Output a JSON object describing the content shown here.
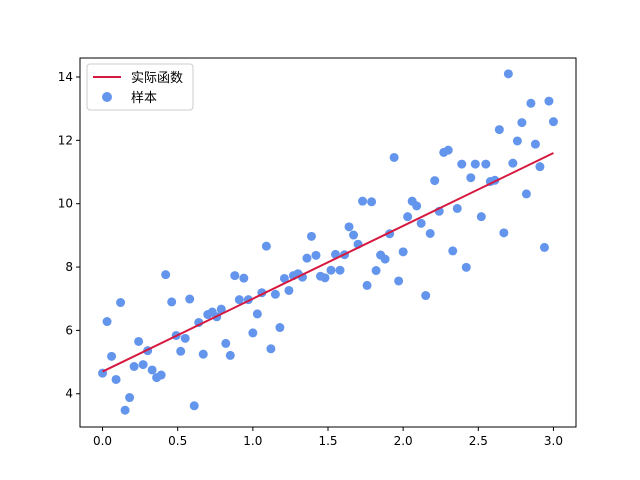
{
  "chart_data": {
    "type": "scatter",
    "title": "",
    "xlabel": "",
    "ylabel": "",
    "xlim": [
      -0.15,
      3.15
    ],
    "ylim": [
      2.95,
      14.6
    ],
    "x_ticks": [
      0.0,
      0.5,
      1.0,
      1.5,
      2.0,
      2.5,
      3.0
    ],
    "x_tick_labels": [
      "0.0",
      "0.5",
      "1.0",
      "1.5",
      "2.0",
      "2.5",
      "3.0"
    ],
    "y_ticks": [
      4,
      6,
      8,
      10,
      12,
      14
    ],
    "y_tick_labels": [
      "4",
      "6",
      "8",
      "10",
      "12",
      "14"
    ],
    "grid": false,
    "legend_position": "top-left",
    "series": [
      {
        "name": "实际函数",
        "kind": "line",
        "color": "#d6193f",
        "x": [
          0.0,
          3.0
        ],
        "y": [
          4.7,
          11.6
        ]
      },
      {
        "name": "样本",
        "kind": "scatter",
        "color": "#6495ed",
        "points": [
          [
            0.0,
            4.65
          ],
          [
            0.03,
            6.28
          ],
          [
            0.06,
            5.18
          ],
          [
            0.09,
            4.45
          ],
          [
            0.12,
            6.88
          ],
          [
            0.15,
            3.48
          ],
          [
            0.18,
            3.88
          ],
          [
            0.21,
            4.86
          ],
          [
            0.24,
            5.65
          ],
          [
            0.27,
            4.92
          ],
          [
            0.3,
            5.36
          ],
          [
            0.33,
            4.75
          ],
          [
            0.36,
            4.51
          ],
          [
            0.39,
            4.59
          ],
          [
            0.42,
            7.76
          ],
          [
            0.46,
            6.9
          ],
          [
            0.49,
            5.84
          ],
          [
            0.52,
            5.34
          ],
          [
            0.55,
            5.75
          ],
          [
            0.58,
            6.99
          ],
          [
            0.61,
            3.62
          ],
          [
            0.64,
            6.25
          ],
          [
            0.67,
            5.25
          ],
          [
            0.7,
            6.5
          ],
          [
            0.73,
            6.58
          ],
          [
            0.76,
            6.43
          ],
          [
            0.79,
            6.67
          ],
          [
            0.82,
            5.59
          ],
          [
            0.85,
            5.21
          ],
          [
            0.88,
            7.73
          ],
          [
            0.91,
            6.97
          ],
          [
            0.94,
            7.65
          ],
          [
            0.97,
            6.97
          ],
          [
            1.0,
            5.92
          ],
          [
            1.03,
            6.52
          ],
          [
            1.06,
            7.19
          ],
          [
            1.09,
            8.66
          ],
          [
            1.12,
            5.42
          ],
          [
            1.15,
            7.14
          ],
          [
            1.18,
            6.09
          ],
          [
            1.21,
            7.64
          ],
          [
            1.24,
            7.26
          ],
          [
            1.27,
            7.73
          ],
          [
            1.3,
            7.79
          ],
          [
            1.33,
            7.68
          ],
          [
            1.36,
            8.28
          ],
          [
            1.39,
            8.97
          ],
          [
            1.42,
            8.37
          ],
          [
            1.45,
            7.71
          ],
          [
            1.48,
            7.66
          ],
          [
            1.52,
            7.9
          ],
          [
            1.55,
            8.4
          ],
          [
            1.58,
            7.9
          ],
          [
            1.61,
            8.39
          ],
          [
            1.64,
            9.27
          ],
          [
            1.67,
            9.01
          ],
          [
            1.7,
            8.72
          ],
          [
            1.73,
            10.08
          ],
          [
            1.76,
            7.42
          ],
          [
            1.79,
            10.06
          ],
          [
            1.82,
            7.89
          ],
          [
            1.85,
            8.38
          ],
          [
            1.88,
            8.25
          ],
          [
            1.91,
            9.05
          ],
          [
            1.94,
            11.46
          ],
          [
            1.97,
            7.56
          ],
          [
            2.0,
            8.48
          ],
          [
            2.03,
            9.59
          ],
          [
            2.06,
            10.08
          ],
          [
            2.09,
            9.93
          ],
          [
            2.12,
            9.38
          ],
          [
            2.15,
            7.1
          ],
          [
            2.18,
            9.06
          ],
          [
            2.21,
            10.73
          ],
          [
            2.24,
            9.76
          ],
          [
            2.27,
            11.62
          ],
          [
            2.3,
            11.69
          ],
          [
            2.33,
            8.51
          ],
          [
            2.36,
            9.85
          ],
          [
            2.39,
            11.25
          ],
          [
            2.42,
            7.99
          ],
          [
            2.45,
            10.82
          ],
          [
            2.48,
            11.25
          ],
          [
            2.52,
            9.59
          ],
          [
            2.55,
            11.25
          ],
          [
            2.58,
            10.7
          ],
          [
            2.61,
            10.74
          ],
          [
            2.64,
            12.34
          ],
          [
            2.67,
            9.08
          ],
          [
            2.7,
            14.1
          ],
          [
            2.73,
            11.28
          ],
          [
            2.76,
            11.98
          ],
          [
            2.79,
            12.56
          ],
          [
            2.82,
            10.31
          ],
          [
            2.85,
            13.17
          ],
          [
            2.88,
            11.88
          ],
          [
            2.91,
            11.17
          ],
          [
            2.94,
            8.62
          ],
          [
            2.97,
            13.24
          ],
          [
            3.0,
            12.59
          ]
        ]
      }
    ]
  }
}
